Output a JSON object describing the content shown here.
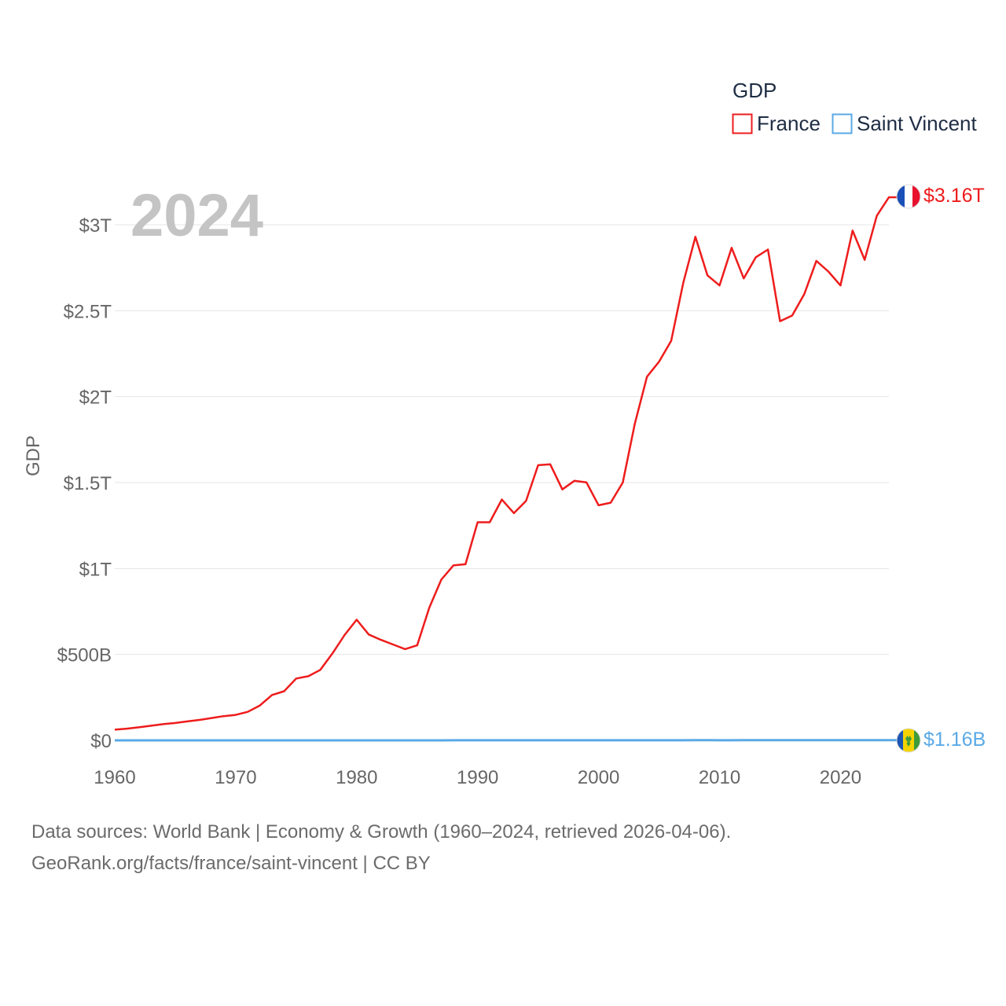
{
  "colors": {
    "france": "#ee1c1c",
    "saint_vincent": "#5aa9e6",
    "grid": "#e6e6e6",
    "watermark": "#c4c4c4"
  },
  "legend": {
    "title": "GDP",
    "items": [
      "France",
      "Saint Vincent"
    ]
  },
  "year_watermark": "2024",
  "end_labels": {
    "france": "$3.16T",
    "saint_vincent": "$1.16B"
  },
  "flags": {
    "france": "france-flag-icon",
    "saint_vincent": "saint-vincent-flag-icon"
  },
  "source": {
    "line1": "Data sources: World Bank | Economy & Growth (1960–2024, retrieved 2026-04-06).",
    "line2": "GeoRank.org/facts/france/saint-vincent | CC BY"
  },
  "chart_data": {
    "type": "line",
    "title": "",
    "xlabel": "",
    "ylabel": "GDP",
    "xlim": [
      1960,
      2024
    ],
    "ylim": [
      0,
      3000
    ],
    "y_unit": "billions USD",
    "x_ticks": [
      1960,
      1970,
      1980,
      1990,
      2000,
      2010,
      2020
    ],
    "x_tick_labels": [
      "1960",
      "1970",
      "1980",
      "1990",
      "2000",
      "2010",
      "2020"
    ],
    "y_ticks": [
      0,
      500,
      1000,
      1500,
      2000,
      2500,
      3000
    ],
    "y_tick_labels": [
      "$0",
      "$500B",
      "$1T",
      "$1.5T",
      "$2T",
      "$2.5T",
      "$3T"
    ],
    "grid": true,
    "legend_position": "top-right",
    "x": [
      1960,
      1961,
      1962,
      1963,
      1964,
      1965,
      1966,
      1967,
      1968,
      1969,
      1970,
      1971,
      1972,
      1973,
      1974,
      1975,
      1976,
      1977,
      1978,
      1979,
      1980,
      1981,
      1982,
      1983,
      1984,
      1985,
      1986,
      1987,
      1988,
      1989,
      1990,
      1991,
      1992,
      1993,
      1994,
      1995,
      1996,
      1997,
      1998,
      1999,
      2000,
      2001,
      2002,
      2003,
      2004,
      2005,
      2006,
      2007,
      2008,
      2009,
      2010,
      2011,
      2012,
      2013,
      2014,
      2015,
      2016,
      2017,
      2018,
      2019,
      2020,
      2021,
      2022,
      2023,
      2024
    ],
    "series": [
      {
        "name": "France",
        "values": [
          62,
          68,
          76,
          85,
          94,
          101,
          110,
          119,
          130,
          141,
          148,
          166,
          203,
          264,
          286,
          360,
          373,
          410,
          506,
          613,
          702,
          616,
          585,
          558,
          531,
          553,
          772,
          935,
          1018,
          1025,
          1269,
          1269,
          1401,
          1322,
          1393,
          1601,
          1606,
          1460,
          1510,
          1501,
          1368,
          1383,
          1500,
          1844,
          2116,
          2204,
          2325,
          2663,
          2930,
          2706,
          2647,
          2866,
          2688,
          2811,
          2856,
          2439,
          2472,
          2596,
          2790,
          2728,
          2647,
          2966,
          2796,
          3052,
          3160
        ]
      },
      {
        "name": "Saint Vincent",
        "values": [
          0.02,
          0.02,
          0.02,
          0.02,
          0.02,
          0.03,
          0.03,
          0.03,
          0.03,
          0.03,
          0.03,
          0.04,
          0.04,
          0.05,
          0.05,
          0.06,
          0.06,
          0.07,
          0.08,
          0.09,
          0.1,
          0.12,
          0.13,
          0.14,
          0.15,
          0.16,
          0.18,
          0.2,
          0.23,
          0.25,
          0.27,
          0.29,
          0.31,
          0.32,
          0.33,
          0.35,
          0.36,
          0.38,
          0.4,
          0.42,
          0.43,
          0.45,
          0.47,
          0.49,
          0.53,
          0.55,
          0.61,
          0.66,
          0.69,
          0.69,
          0.68,
          0.68,
          0.69,
          0.73,
          0.74,
          0.76,
          0.77,
          0.79,
          0.81,
          0.82,
          0.81,
          0.87,
          0.95,
          1.08,
          1.16
        ]
      }
    ]
  }
}
